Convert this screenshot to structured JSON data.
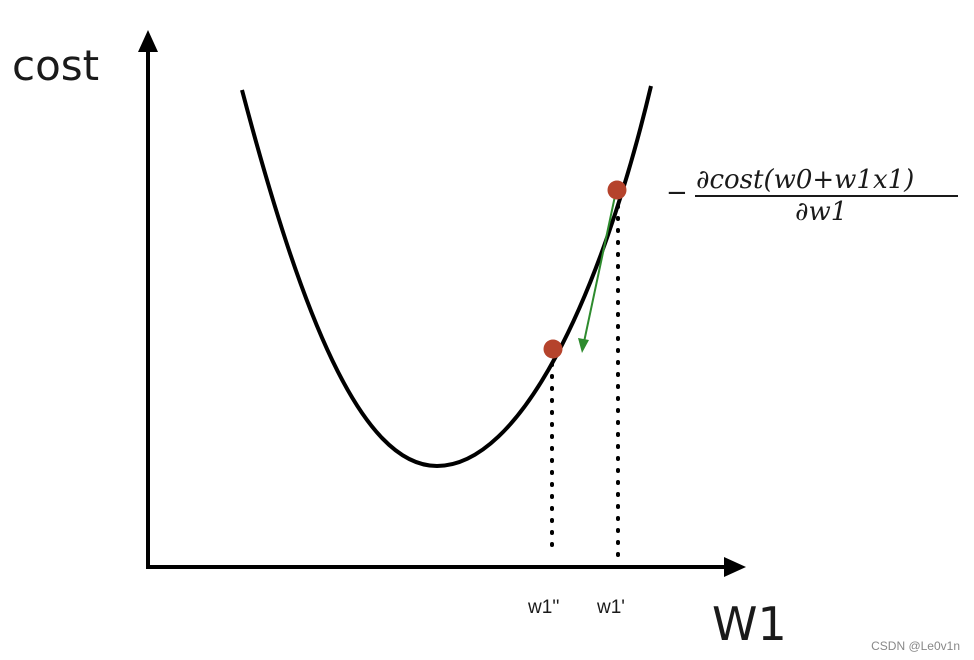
{
  "diagram": {
    "y_axis_label": "cost",
    "x_axis_label": "W1",
    "tick_labels": {
      "w1_double_prime": "w1''",
      "w1_prime": "w1'"
    },
    "formula": {
      "minus": "−",
      "numerator": "∂cost(w0+w1x1)",
      "denominator": "∂w1"
    },
    "watermark": "CSDN @Le0v1n",
    "colors": {
      "curve": "#000000",
      "point": "#b5432c",
      "arrow": "#2e8b2e",
      "axis": "#000000"
    }
  }
}
